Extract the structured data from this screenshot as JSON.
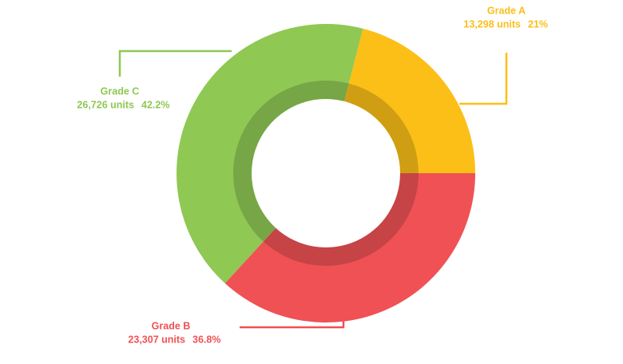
{
  "chart_data": {
    "type": "donut",
    "categories": [
      "Grade A",
      "Grade B",
      "Grade C"
    ],
    "values": [
      13298,
      23307,
      26726
    ],
    "value_labels": [
      "13,298 units",
      "23,307 units",
      "26,726 units"
    ],
    "percentages": [
      21,
      36.8,
      42.2
    ],
    "percentage_labels": [
      "21%",
      "36.8%",
      "42.2%"
    ],
    "colors": [
      "#fbbf17",
      "#ef5155",
      "#8fc853"
    ]
  }
}
